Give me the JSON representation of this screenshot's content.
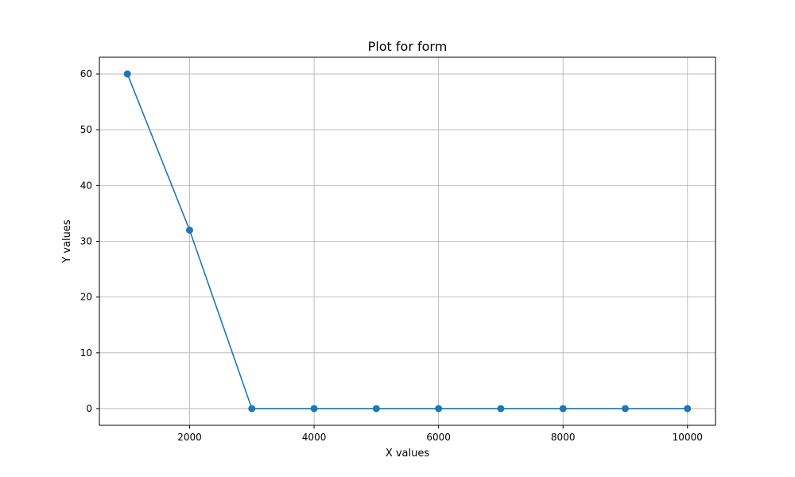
{
  "chart_data": {
    "type": "line",
    "title": "Plot for form",
    "xlabel": "X values",
    "ylabel": "Y values",
    "x": [
      1000,
      2000,
      3000,
      4000,
      5000,
      6000,
      7000,
      8000,
      9000,
      10000
    ],
    "series": [
      {
        "values": [
          60,
          32,
          0,
          0,
          0,
          0,
          0,
          0,
          0,
          0
        ],
        "color": "#1f77b4",
        "marker": "circle"
      }
    ],
    "xlim": [
      550,
      10450
    ],
    "ylim": [
      -3,
      63
    ],
    "xticks": [
      2000,
      4000,
      6000,
      8000,
      10000
    ],
    "xtick_labels": [
      "2000",
      "4000",
      "6000",
      "8000",
      "10000"
    ],
    "yticks": [
      0,
      10,
      20,
      30,
      40,
      50,
      60
    ],
    "ytick_labels": [
      "0",
      "10",
      "20",
      "30",
      "40",
      "50",
      "60"
    ],
    "grid": true,
    "legend": false
  }
}
